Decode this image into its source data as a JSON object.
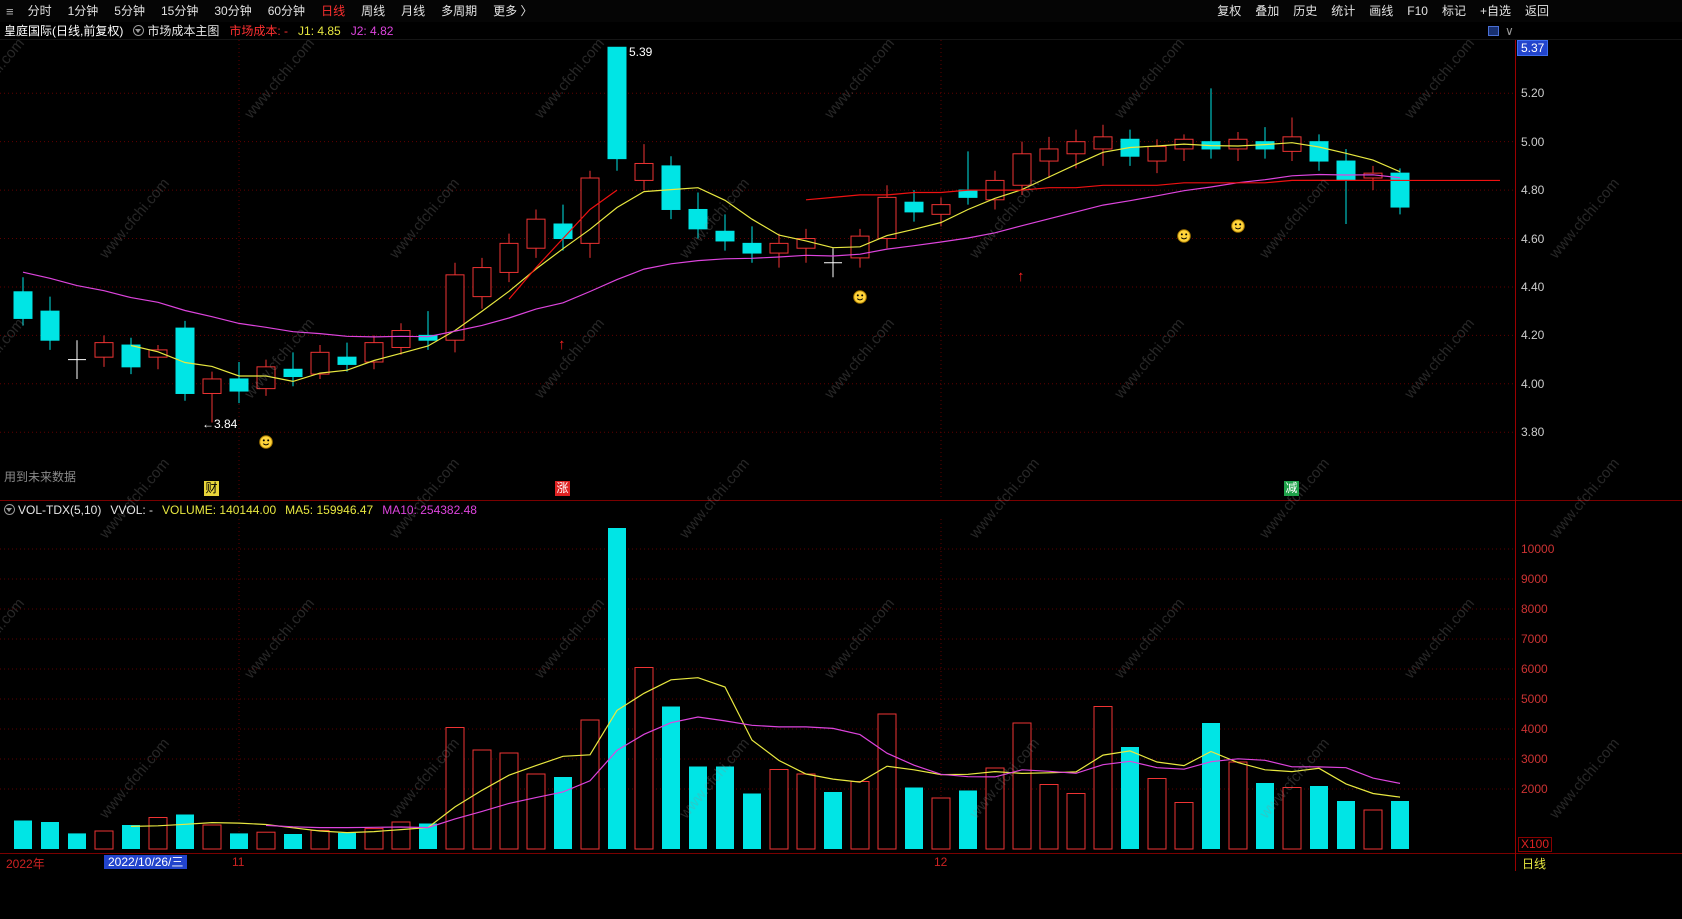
{
  "app": {
    "watermark": "www.cfchi.com"
  },
  "icons": {
    "app": "≡",
    "panel_caret": "∨"
  },
  "top_menu": {
    "left_items": [
      {
        "label": "分时"
      },
      {
        "label": "1分钟"
      },
      {
        "label": "5分钟"
      },
      {
        "label": "15分钟"
      },
      {
        "label": "30分钟"
      },
      {
        "label": "60分钟"
      },
      {
        "label": "日线",
        "active": true
      },
      {
        "label": "周线"
      },
      {
        "label": "月线"
      },
      {
        "label": "多周期"
      },
      {
        "label": "更多 〉"
      }
    ],
    "right_items": [
      "复权",
      "叠加",
      "历史",
      "统计",
      "画线",
      "F10",
      "标记",
      "+自选",
      "返回"
    ]
  },
  "info_bar": {
    "title": "皇庭国际(日线,前复权)",
    "overlay_label": "市场成本主图",
    "cost_label": "市场成本: -",
    "j1_label": "J1: 4.85",
    "j2_label": "J2: 4.82"
  },
  "main_chart": {
    "price_axis": {
      "top_value": "5.37",
      "ticks": [
        5.2,
        5.0,
        4.8,
        4.6,
        4.4,
        4.2,
        4.0,
        3.8
      ]
    },
    "annotations": {
      "peak": {
        "label": "5.39",
        "index": 22,
        "price": 5.39
      },
      "trough": {
        "label": "←3.84",
        "index": 7,
        "price": 3.84
      },
      "future_note": "用到未来数据"
    },
    "event_tags": [
      {
        "label": "财",
        "index": 7,
        "bg": "#e8d53a",
        "fg": "#000000"
      },
      {
        "label": "涨",
        "index": 20,
        "bg": "#dd2222",
        "fg": "#ffffff"
      },
      {
        "label": "减",
        "index": 47,
        "bg": "#1fa24a",
        "fg": "#ffffff"
      }
    ],
    "markers": [
      {
        "type": "smiley",
        "index": 9,
        "price": 3.76
      },
      {
        "type": "smiley",
        "index": 31,
        "price": 4.36
      },
      {
        "type": "smiley",
        "index": 43,
        "price": 4.61
      },
      {
        "type": "smiley",
        "index": 45,
        "price": 4.65
      },
      {
        "type": "arrow-up",
        "index": 20,
        "price": 4.16
      },
      {
        "type": "arrow-up",
        "index": 37,
        "price": 4.44
      }
    ]
  },
  "volume_pane": {
    "header": {
      "name": "VOL-TDX(5,10)",
      "vvol": "VVOL: -",
      "volume": "VOLUME: 140144.00",
      "ma5": "MA5: 159946.47",
      "ma10": "MA10: 254382.48"
    },
    "axis_ticks": [
      10000,
      9000,
      8000,
      7000,
      6000,
      5000,
      4000,
      3000,
      2000
    ],
    "unit": "X100"
  },
  "time_axis": {
    "year": "2022年",
    "selected_date": "2022/10/26/三",
    "months": [
      {
        "label": "11",
        "index": 8
      },
      {
        "label": "12",
        "index": 34
      }
    ],
    "period_label": "日线"
  },
  "chart_data": {
    "type": "candlestick+volume",
    "title": "皇庭国际 日线 前复权",
    "price_range": [
      3.52,
      5.42
    ],
    "volume_range": [
      0,
      11000
    ],
    "volume_unit": "X100",
    "colors": {
      "up": "#ee3333",
      "down": "#00e5e5",
      "doji": "#ffffff",
      "j1": "#e8e840",
      "j2": "#dd44dd",
      "cost": "#ee1111",
      "grid": "#600000"
    },
    "candles": [
      [
        4.38,
        4.44,
        4.24,
        4.27,
        950
      ],
      [
        4.3,
        4.36,
        4.14,
        4.18,
        900
      ],
      [
        4.1,
        4.18,
        4.02,
        4.1,
        520
      ],
      [
        4.11,
        4.2,
        4.07,
        4.17,
        600
      ],
      [
        4.16,
        4.19,
        4.04,
        4.07,
        800
      ],
      [
        4.11,
        4.16,
        4.06,
        4.14,
        1050
      ],
      [
        4.23,
        4.26,
        3.93,
        3.96,
        1150
      ],
      [
        3.96,
        4.05,
        3.84,
        4.02,
        800
      ],
      [
        4.02,
        4.09,
        3.92,
        3.97,
        520
      ],
      [
        3.98,
        4.1,
        3.95,
        4.07,
        560
      ],
      [
        4.06,
        4.13,
        3.99,
        4.03,
        500
      ],
      [
        4.04,
        4.16,
        4.02,
        4.13,
        620
      ],
      [
        4.11,
        4.17,
        4.05,
        4.08,
        540
      ],
      [
        4.09,
        4.2,
        4.06,
        4.17,
        680
      ],
      [
        4.15,
        4.25,
        4.12,
        4.22,
        900
      ],
      [
        4.2,
        4.3,
        4.14,
        4.18,
        850
      ],
      [
        4.18,
        4.5,
        4.13,
        4.45,
        4050
      ],
      [
        4.36,
        4.52,
        4.31,
        4.48,
        3300
      ],
      [
        4.46,
        4.62,
        4.42,
        4.58,
        3200
      ],
      [
        4.56,
        4.72,
        4.52,
        4.68,
        2500
      ],
      [
        4.66,
        4.74,
        4.55,
        4.6,
        2400
      ],
      [
        4.58,
        4.88,
        4.52,
        4.85,
        4300
      ],
      [
        5.39,
        5.39,
        4.88,
        4.93,
        10700
      ],
      [
        4.84,
        4.99,
        4.8,
        4.91,
        6050
      ],
      [
        4.9,
        4.94,
        4.68,
        4.72,
        4750
      ],
      [
        4.72,
        4.79,
        4.6,
        4.64,
        2750
      ],
      [
        4.63,
        4.7,
        4.55,
        4.59,
        2750
      ],
      [
        4.58,
        4.65,
        4.5,
        4.54,
        1850
      ],
      [
        4.54,
        4.62,
        4.48,
        4.58,
        2650
      ],
      [
        4.56,
        4.64,
        4.5,
        4.6,
        2500
      ],
      [
        4.5,
        4.56,
        4.44,
        4.5,
        1900
      ],
      [
        4.52,
        4.64,
        4.48,
        4.61,
        2250
      ],
      [
        4.6,
        4.82,
        4.56,
        4.77,
        4500
      ],
      [
        4.75,
        4.8,
        4.67,
        4.71,
        2050
      ],
      [
        4.7,
        4.77,
        4.65,
        4.74,
        1700
      ],
      [
        4.8,
        4.96,
        4.74,
        4.77,
        1950
      ],
      [
        4.76,
        4.88,
        4.72,
        4.84,
        2700
      ],
      [
        4.82,
        5.0,
        4.78,
        4.95,
        4200
      ],
      [
        4.92,
        5.02,
        4.85,
        4.97,
        2150
      ],
      [
        4.95,
        5.05,
        4.89,
        5.0,
        1850
      ],
      [
        4.97,
        5.07,
        4.9,
        5.02,
        4750
      ],
      [
        5.01,
        5.05,
        4.9,
        4.94,
        3400
      ],
      [
        4.92,
        5.01,
        4.87,
        4.98,
        2350
      ],
      [
        4.97,
        5.03,
        4.92,
        5.01,
        1550
      ],
      [
        5.0,
        5.22,
        4.93,
        4.97,
        4200
      ],
      [
        4.97,
        5.04,
        4.92,
        5.01,
        2900
      ],
      [
        5.0,
        5.06,
        4.93,
        4.97,
        2200
      ],
      [
        4.96,
        5.1,
        4.92,
        5.02,
        2050
      ],
      [
        5.0,
        5.03,
        4.88,
        4.92,
        2100
      ],
      [
        4.92,
        4.97,
        4.66,
        4.84,
        1600
      ],
      [
        4.85,
        4.9,
        4.8,
        4.87,
        1300
      ],
      [
        4.87,
        4.89,
        4.7,
        4.73,
        1600
      ]
    ],
    "cost_line": [
      null,
      null,
      null,
      null,
      null,
      null,
      null,
      null,
      null,
      null,
      null,
      null,
      null,
      null,
      null,
      null,
      null,
      null,
      4.35,
      4.48,
      4.6,
      4.72,
      4.8,
      null,
      null,
      null,
      null,
      null,
      null,
      4.76,
      4.77,
      4.78,
      4.78,
      4.79,
      4.79,
      4.8,
      4.8,
      4.8,
      4.81,
      4.81,
      4.82,
      4.82,
      4.82,
      4.83,
      4.83,
      4.83,
      4.83,
      4.84,
      4.84,
      4.84,
      4.84,
      4.84
    ],
    "lines": {
      "j1": {
        "method": "sma",
        "period": 5
      },
      "j2": {
        "method": "ema",
        "alpha": 0.09,
        "seed": 4.48
      },
      "vol_ma5_period": 5,
      "vol_ma10_period": 10
    }
  }
}
